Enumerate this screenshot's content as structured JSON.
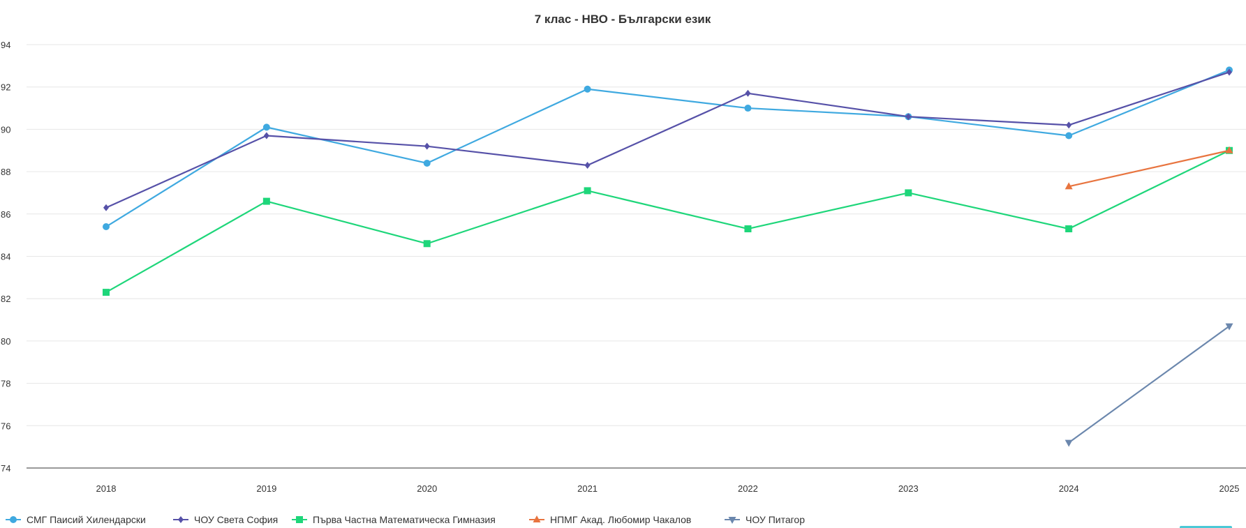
{
  "chart_data": {
    "type": "line",
    "title": "7 клас - НВО - Български език",
    "xlabel": "",
    "ylabel": "",
    "categories": [
      "2018",
      "2019",
      "2020",
      "2021",
      "2022",
      "2023",
      "2024",
      "2025"
    ],
    "ylim": [
      74,
      94
    ],
    "yticks": [
      "74",
      "76",
      "78",
      "80",
      "82",
      "84",
      "86",
      "88",
      "90",
      "92",
      "94"
    ],
    "grid": true,
    "legend": "bottom-left",
    "series": [
      {
        "name": "СМГ Паисий Хилендарски",
        "color": "#3fa9e0",
        "marker": "circle",
        "values": [
          85.4,
          90.1,
          88.4,
          91.9,
          91.0,
          90.6,
          89.7,
          92.8
        ]
      },
      {
        "name": "ЧОУ Света София",
        "color": "#5651a8",
        "marker": "diamond",
        "values": [
          86.3,
          89.7,
          89.2,
          88.3,
          91.7,
          90.6,
          90.2,
          92.7
        ]
      },
      {
        "name": "Първа Частна Математическа Гимназия",
        "color": "#1ed67a",
        "marker": "square",
        "values": [
          82.3,
          86.6,
          84.6,
          87.1,
          85.3,
          87.0,
          85.3,
          89.0
        ]
      },
      {
        "name": "НПМГ Акад. Любомир Чакалов",
        "color": "#e8743f",
        "marker": "triangle-up",
        "values": [
          null,
          null,
          null,
          null,
          null,
          null,
          87.3,
          89.0
        ]
      },
      {
        "name": "ЧОУ Питагор",
        "color": "#6b87ad",
        "marker": "triangle-down",
        "values": [
          null,
          null,
          null,
          null,
          null,
          null,
          75.2,
          80.7
        ]
      }
    ]
  }
}
